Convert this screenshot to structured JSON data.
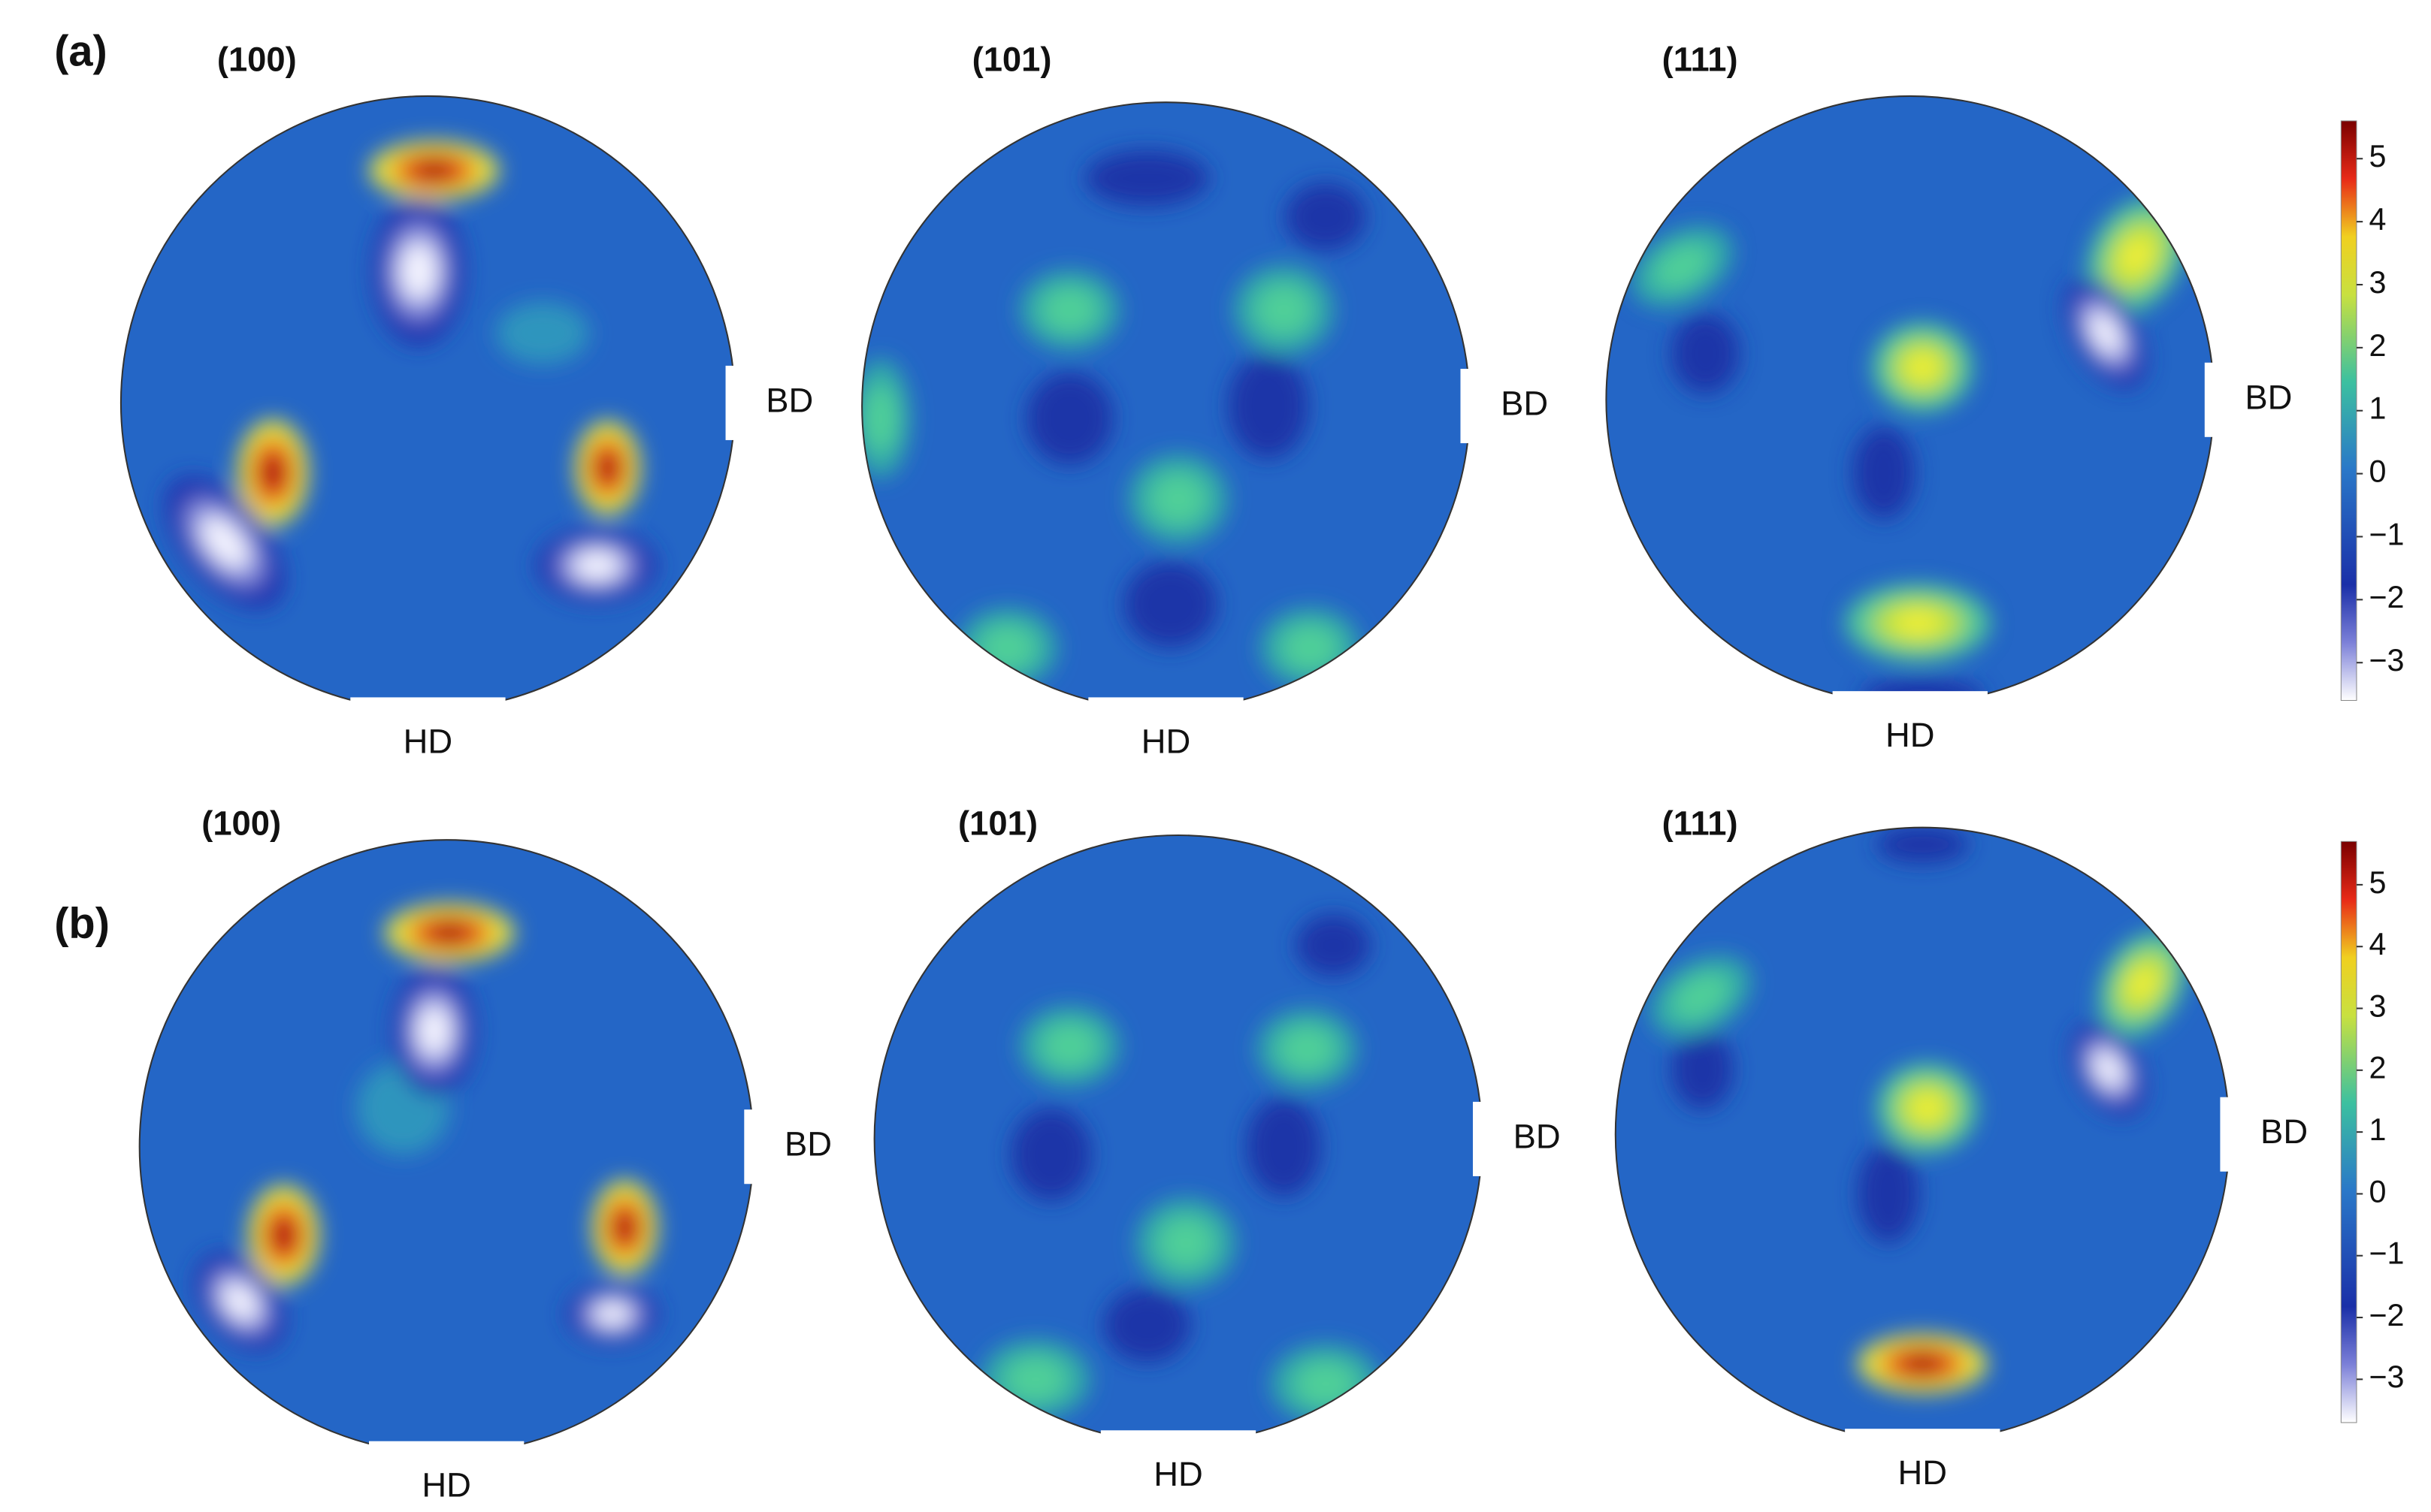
{
  "panels": [
    {
      "label": "(a)",
      "pole_figures": [
        {
          "title": "(100)",
          "side_label": "BD",
          "bottom_label": "HD"
        },
        {
          "title": "(101)",
          "side_label": "BD",
          "bottom_label": "HD"
        },
        {
          "title": "(111)",
          "side_label": "BD",
          "bottom_label": "HD"
        }
      ],
      "colorbar": {
        "lim": [
          -3.6,
          5.6
        ],
        "ticks": [
          5,
          4,
          3,
          2,
          1,
          0,
          {
            "value": -1,
            "label": "−1"
          },
          {
            "value": -2,
            "label": "−2"
          },
          {
            "value": -3,
            "label": "−3"
          }
        ]
      }
    },
    {
      "label": "(b)",
      "pole_figures": [
        {
          "title": "(100)",
          "side_label": "BD",
          "bottom_label": "HD"
        },
        {
          "title": "(101)",
          "side_label": "BD",
          "bottom_label": "HD"
        },
        {
          "title": "(111)",
          "side_label": "BD",
          "bottom_label": "HD"
        }
      ],
      "colorbar": {
        "lim": [
          -3.7,
          5.7
        ],
        "ticks": [
          5,
          4,
          3,
          2,
          1,
          0,
          {
            "value": -1,
            "label": "−1"
          },
          {
            "value": -2,
            "label": "−2"
          },
          {
            "value": -3,
            "label": "−3"
          }
        ]
      }
    }
  ]
}
